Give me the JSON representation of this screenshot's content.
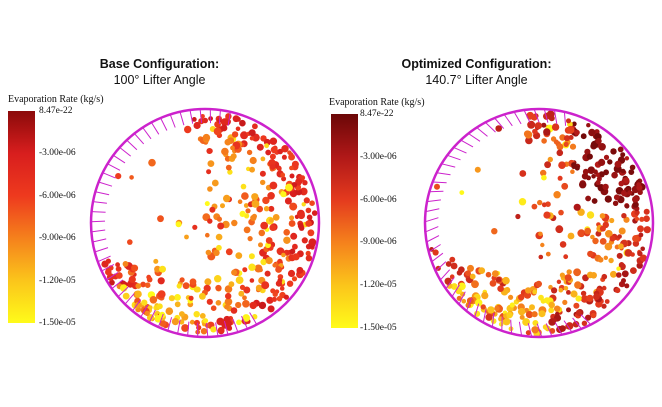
{
  "panels": [
    {
      "title_line1": "Base Configuration:",
      "title_line2": "100° Lifter Angle",
      "colorbar": {
        "label": "Evaporation Rate (kg/s)",
        "ticks": [
          "8.47e-22",
          "-3.00e-06",
          "-6.00e-06",
          "-9.00e-06",
          "-1.20e-05",
          "-1.50e-05"
        ],
        "colors": [
          "#8b0a0a",
          "#d81e1e",
          "#ee3a1e",
          "#f5811c",
          "#fbc51b",
          "#fffb1a"
        ]
      },
      "lifter_angle_deg": 100
    },
    {
      "title_line1": "Optimized Configuration:",
      "title_line2": "140.7° Lifter Angle",
      "colorbar": {
        "label": "Evaporation Rate (kg/s)",
        "ticks": [
          "8.47e-22",
          "-3.00e-06",
          "-6.00e-06",
          "-9.00e-06",
          "-1.20e-05",
          "-1.50e-05"
        ],
        "colors": [
          "#6b0707",
          "#b01818",
          "#e43a1e",
          "#f5811c",
          "#fbc51b",
          "#fffb1a"
        ]
      },
      "lifter_angle_deg": 140.7
    }
  ],
  "drum_color": "#cc22cc"
}
